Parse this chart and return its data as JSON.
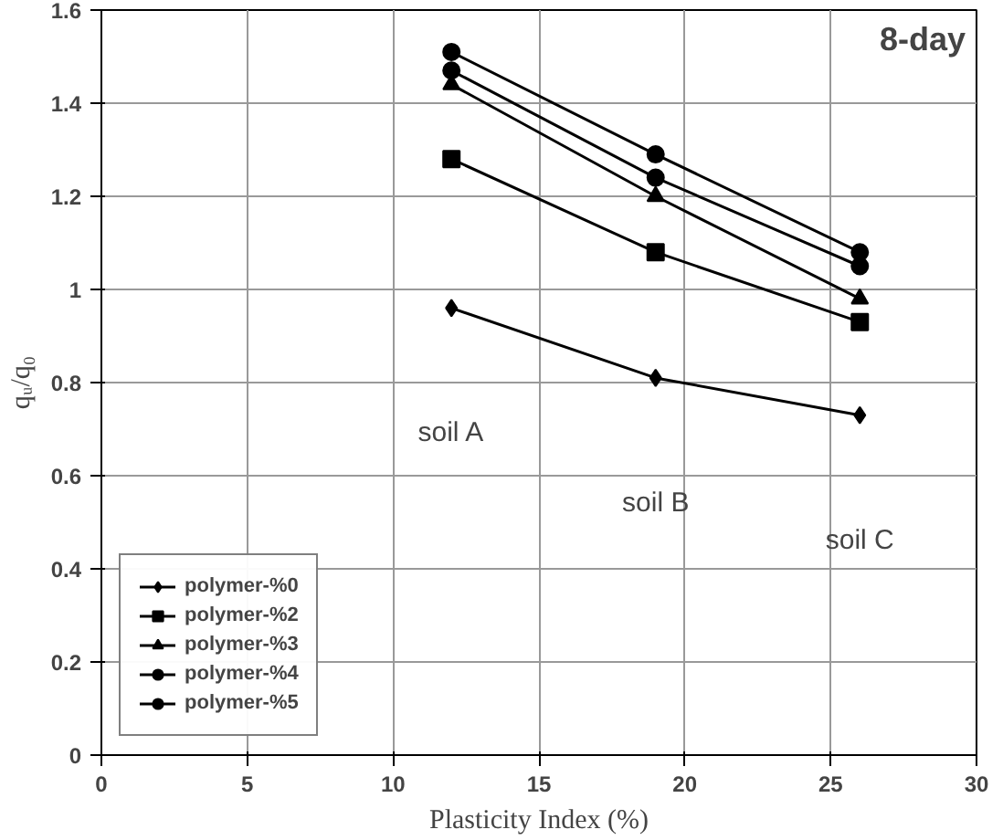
{
  "chart_data": {
    "type": "line",
    "title": "8-day",
    "xlabel": "Plasticity Index (%)",
    "ylabel": "qᵤ/q₀",
    "x": [
      12,
      19,
      26
    ],
    "series": [
      {
        "name": "polymer-%0",
        "color": "#000000",
        "marker": "diamond",
        "values": [
          0.96,
          0.81,
          0.73
        ]
      },
      {
        "name": "polymer-%2",
        "color": "#000000",
        "marker": "square",
        "values": [
          1.28,
          1.08,
          0.93
        ]
      },
      {
        "name": "polymer-%3",
        "color": "#000000",
        "marker": "triangle",
        "values": [
          1.44,
          1.2,
          0.98
        ]
      },
      {
        "name": "polymer-%4",
        "color": "#000000",
        "marker": "circle",
        "values": [
          1.51,
          1.29,
          1.08
        ]
      },
      {
        "name": "polymer-%5",
        "color": "#000000",
        "marker": "circle",
        "values": [
          1.47,
          1.24,
          1.05
        ]
      }
    ],
    "xlim": [
      0,
      30
    ],
    "xticks": [
      0,
      5,
      10,
      15,
      20,
      25,
      30
    ],
    "ylim": [
      0,
      1.6
    ],
    "yticks": [
      0,
      {
        "value": 0.2,
        "label": "0.2"
      },
      {
        "value": 0.4,
        "label": "0.4"
      },
      {
        "value": 0.6,
        "label": "0.6"
      },
      {
        "value": 0.8,
        "label": "0.8"
      },
      1,
      {
        "value": 1.2,
        "label": "1.2"
      },
      {
        "value": 1.4,
        "label": "1.4"
      },
      {
        "value": 1.6,
        "label": "1.6"
      }
    ],
    "annotations": [
      "soil A",
      "soil B",
      "soil C"
    ],
    "grid": true,
    "legend": "bottom left",
    "line_style": "solid"
  }
}
